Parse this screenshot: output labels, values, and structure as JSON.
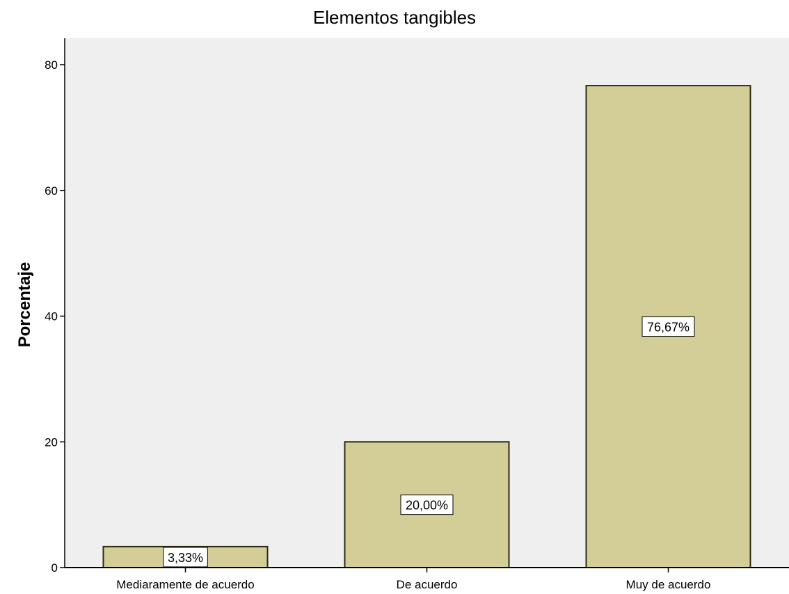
{
  "chart_data": {
    "type": "bar",
    "title": "Elementos tangibles",
    "xlabel": "",
    "ylabel": "Porcentaje",
    "categories": [
      "Mediaramente  de acuerdo",
      "De acuerdo",
      "Muy de acuerdo"
    ],
    "values": [
      3.33,
      20.0,
      76.67
    ],
    "data_labels": [
      "3,33%",
      "20,00%",
      "76,67%"
    ],
    "ylim": [
      0,
      80
    ],
    "yticks": [
      0,
      20,
      40,
      60,
      80
    ],
    "ytick_labels": [
      "0",
      "20",
      "40",
      "60",
      "80"
    ],
    "grid": false,
    "colors": {
      "plot_background": "#efefef",
      "bar_fill": "#d3ce98",
      "bar_stroke": "#2b2b10",
      "label_box": "#ffffff"
    }
  }
}
